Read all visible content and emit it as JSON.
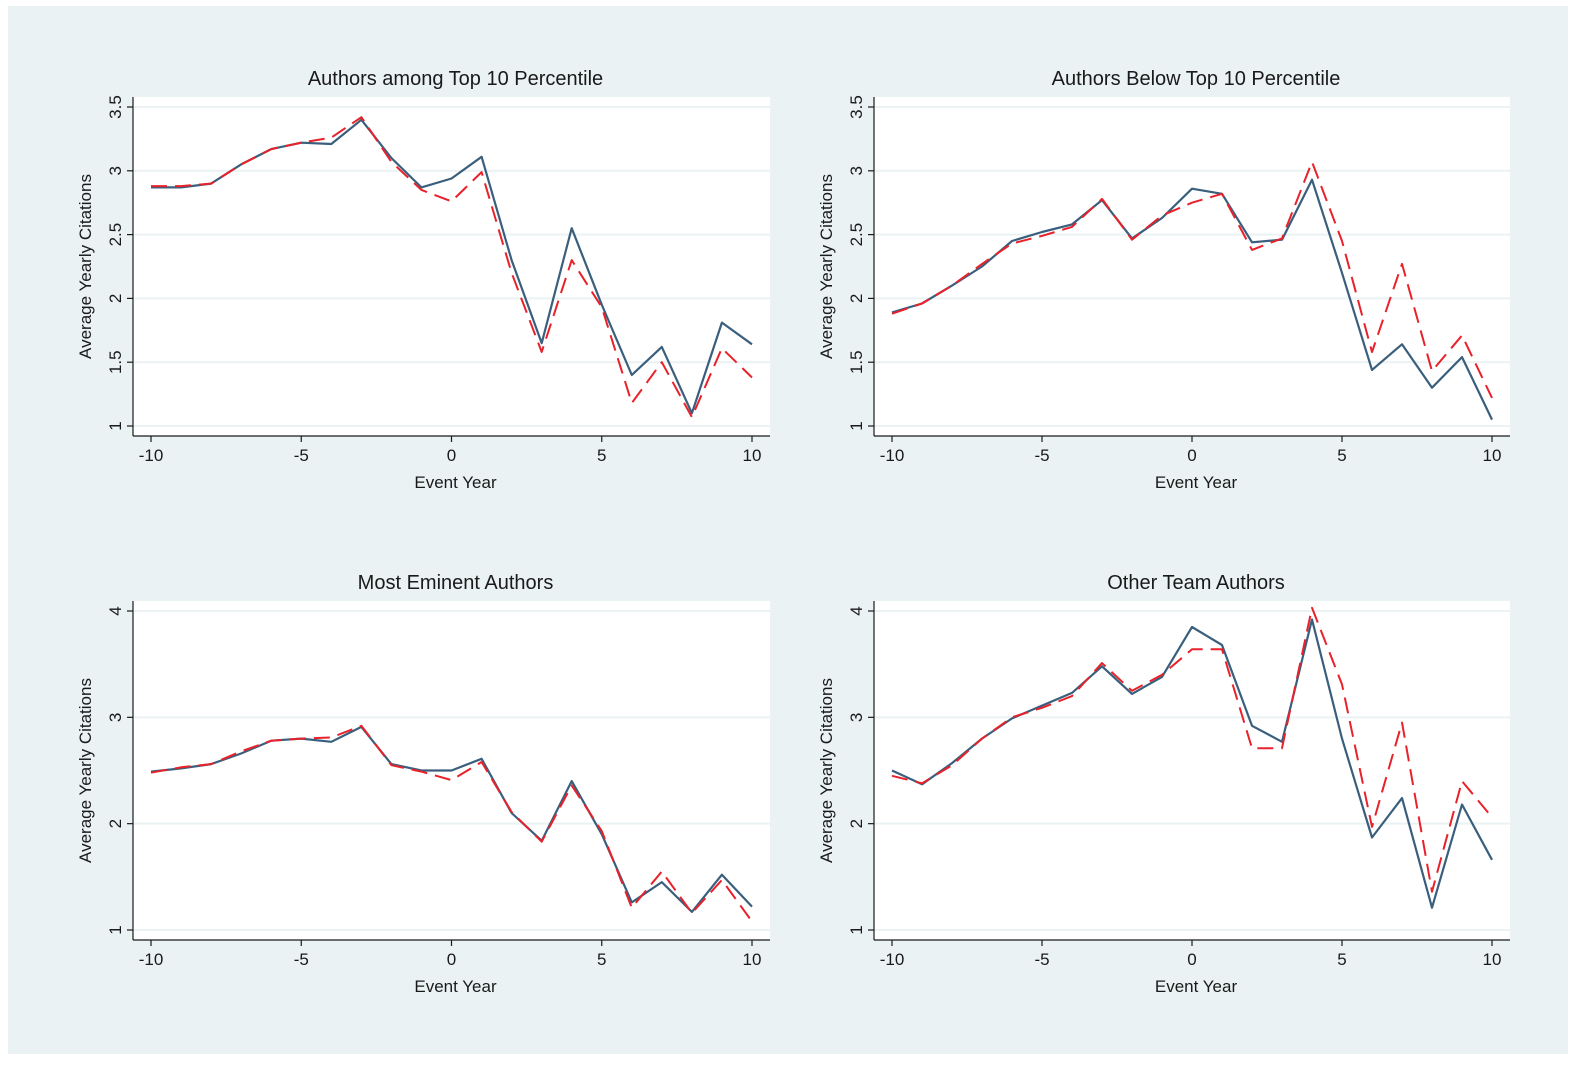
{
  "chart_data": [
    {
      "type": "line",
      "title": "Authors among Top 10 Percentile",
      "xlabel": "Event Year",
      "ylabel": "Average Yearly Citations",
      "xlim": [
        -10,
        10
      ],
      "ylim": [
        1,
        3.5
      ],
      "xticks": [
        -10,
        -5,
        0,
        5,
        10
      ],
      "yticks": [
        1,
        1.5,
        2,
        2.5,
        3,
        3.5
      ],
      "x": [
        -10,
        -9,
        -8,
        -7,
        -6,
        -5,
        -4,
        -3,
        -2,
        -1,
        0,
        1,
        2,
        3,
        4,
        5,
        6,
        7,
        8,
        9,
        10
      ],
      "series": [
        {
          "style": "solid",
          "color": "#3a5f7d",
          "values": [
            2.87,
            2.87,
            2.9,
            3.05,
            3.17,
            3.22,
            3.21,
            3.4,
            3.1,
            2.87,
            2.94,
            3.11,
            2.3,
            1.65,
            2.55,
            1.95,
            1.4,
            1.62,
            1.1,
            1.81,
            1.64
          ]
        },
        {
          "style": "dashed",
          "color": "#e8212a",
          "values": [
            2.88,
            2.88,
            2.9,
            3.05,
            3.17,
            3.22,
            3.26,
            3.42,
            3.07,
            2.85,
            2.76,
            2.99,
            2.2,
            1.58,
            2.3,
            1.93,
            1.18,
            1.5,
            1.07,
            1.61,
            1.38
          ]
        }
      ]
    },
    {
      "type": "line",
      "title": "Authors Below Top 10 Percentile",
      "xlabel": "Event Year",
      "ylabel": "Average Yearly Citations",
      "xlim": [
        -10,
        10
      ],
      "ylim": [
        1,
        3.5
      ],
      "xticks": [
        -10,
        -5,
        0,
        5,
        10
      ],
      "yticks": [
        1,
        1.5,
        2,
        2.5,
        3,
        3.5
      ],
      "x": [
        -10,
        -9,
        -8,
        -7,
        -6,
        -5,
        -4,
        -3,
        -2,
        -1,
        0,
        1,
        2,
        3,
        4,
        5,
        6,
        7,
        8,
        9,
        10
      ],
      "series": [
        {
          "style": "solid",
          "color": "#3a5f7d",
          "values": [
            1.89,
            1.96,
            2.1,
            2.25,
            2.45,
            2.52,
            2.58,
            2.77,
            2.47,
            2.63,
            2.86,
            2.82,
            2.44,
            2.46,
            2.93,
            2.2,
            1.44,
            1.64,
            1.3,
            1.54,
            1.05
          ]
        },
        {
          "style": "dashed",
          "color": "#e8212a",
          "values": [
            1.88,
            1.96,
            2.1,
            2.27,
            2.43,
            2.49,
            2.56,
            2.78,
            2.46,
            2.65,
            2.75,
            2.82,
            2.38,
            2.47,
            3.07,
            2.45,
            1.58,
            2.27,
            1.43,
            1.71,
            1.22
          ]
        }
      ]
    },
    {
      "type": "line",
      "title": "Most Eminent Authors",
      "xlabel": "Event Year",
      "ylabel": "Average Yearly Citations",
      "xlim": [
        -10,
        10
      ],
      "ylim": [
        1,
        4
      ],
      "xticks": [
        -10,
        -5,
        0,
        5,
        10
      ],
      "yticks": [
        1,
        2,
        3,
        4
      ],
      "x": [
        -10,
        -9,
        -8,
        -7,
        -6,
        -5,
        -4,
        -3,
        -2,
        -1,
        0,
        1,
        2,
        3,
        4,
        5,
        6,
        7,
        8,
        9,
        10
      ],
      "series": [
        {
          "style": "solid",
          "color": "#3a5f7d",
          "values": [
            2.49,
            2.52,
            2.56,
            2.66,
            2.78,
            2.8,
            2.77,
            2.91,
            2.56,
            2.5,
            2.5,
            2.61,
            2.1,
            1.84,
            2.4,
            1.9,
            1.26,
            1.45,
            1.17,
            1.52,
            1.22
          ]
        },
        {
          "style": "dashed",
          "color": "#e8212a",
          "values": [
            2.48,
            2.53,
            2.56,
            2.68,
            2.78,
            2.8,
            2.81,
            2.92,
            2.55,
            2.49,
            2.41,
            2.58,
            2.11,
            1.83,
            2.36,
            1.93,
            1.21,
            1.55,
            1.16,
            1.47,
            1.08
          ]
        }
      ]
    },
    {
      "type": "line",
      "title": "Other Team Authors",
      "xlabel": "Event Year",
      "ylabel": "Average Yearly Citations",
      "xlim": [
        -10,
        10
      ],
      "ylim": [
        1,
        4
      ],
      "xticks": [
        -10,
        -5,
        0,
        5,
        10
      ],
      "yticks": [
        1,
        2,
        3,
        4
      ],
      "x": [
        -10,
        -9,
        -8,
        -7,
        -6,
        -5,
        -4,
        -3,
        -2,
        -1,
        0,
        1,
        2,
        3,
        4,
        5,
        6,
        7,
        8,
        9,
        10
      ],
      "series": [
        {
          "style": "solid",
          "color": "#3a5f7d",
          "values": [
            2.5,
            2.37,
            2.57,
            2.8,
            2.99,
            3.11,
            3.23,
            3.48,
            3.22,
            3.38,
            3.85,
            3.68,
            2.92,
            2.77,
            3.92,
            2.8,
            1.87,
            2.24,
            1.21,
            2.18,
            1.66
          ]
        },
        {
          "style": "dashed",
          "color": "#e8212a",
          "values": [
            2.45,
            2.38,
            2.55,
            2.8,
            3.0,
            3.09,
            3.2,
            3.51,
            3.25,
            3.4,
            3.64,
            3.64,
            2.71,
            2.71,
            4.03,
            3.31,
            1.97,
            2.95,
            1.36,
            2.4,
            2.06
          ]
        }
      ]
    }
  ]
}
